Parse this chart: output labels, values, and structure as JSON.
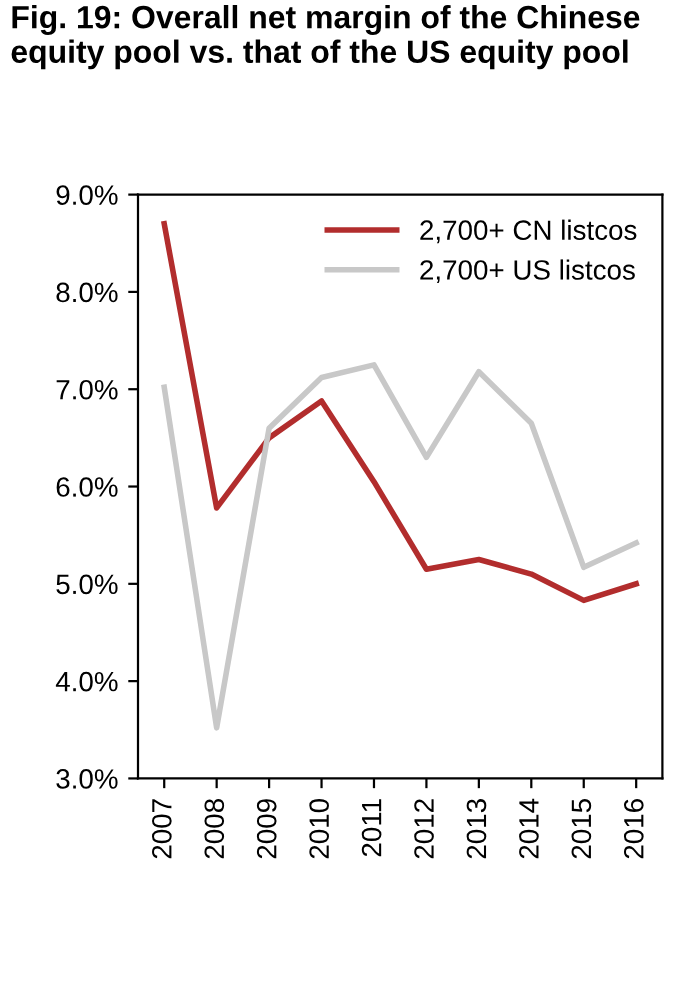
{
  "chart_data": {
    "type": "line",
    "title": "Fig. 19: Overall net margin of the Chinese equity pool vs. that of the US equity pool",
    "categories": [
      "2007",
      "2008",
      "2009",
      "2010",
      "2011",
      "2012",
      "2013",
      "2014",
      "2015",
      "2016"
    ],
    "series": [
      {
        "name": "2,700+ CN listcos",
        "color": "#b22d2d",
        "values": [
          8.7,
          5.78,
          6.5,
          6.88,
          6.05,
          5.15,
          5.25,
          5.1,
          4.83,
          5.0
        ]
      },
      {
        "name": "2,700+ US listcos",
        "color": "#c8c8c8",
        "values": [
          7.02,
          3.52,
          6.6,
          7.12,
          7.25,
          6.3,
          7.18,
          6.65,
          5.17,
          5.42
        ]
      }
    ],
    "ylim": [
      3.0,
      9.0
    ],
    "yticks": [
      {
        "value": 3.0,
        "label": "3.0%"
      },
      {
        "value": 4.0,
        "label": "4.0%"
      },
      {
        "value": 5.0,
        "label": "5.0%"
      },
      {
        "value": 6.0,
        "label": "6.0%"
      },
      {
        "value": 7.0,
        "label": "7.0%"
      },
      {
        "value": 8.0,
        "label": "8.0%"
      },
      {
        "value": 9.0,
        "label": "9.0%"
      }
    ],
    "grid": false,
    "legend": "top right",
    "marker": "none",
    "line_style": "solid"
  }
}
